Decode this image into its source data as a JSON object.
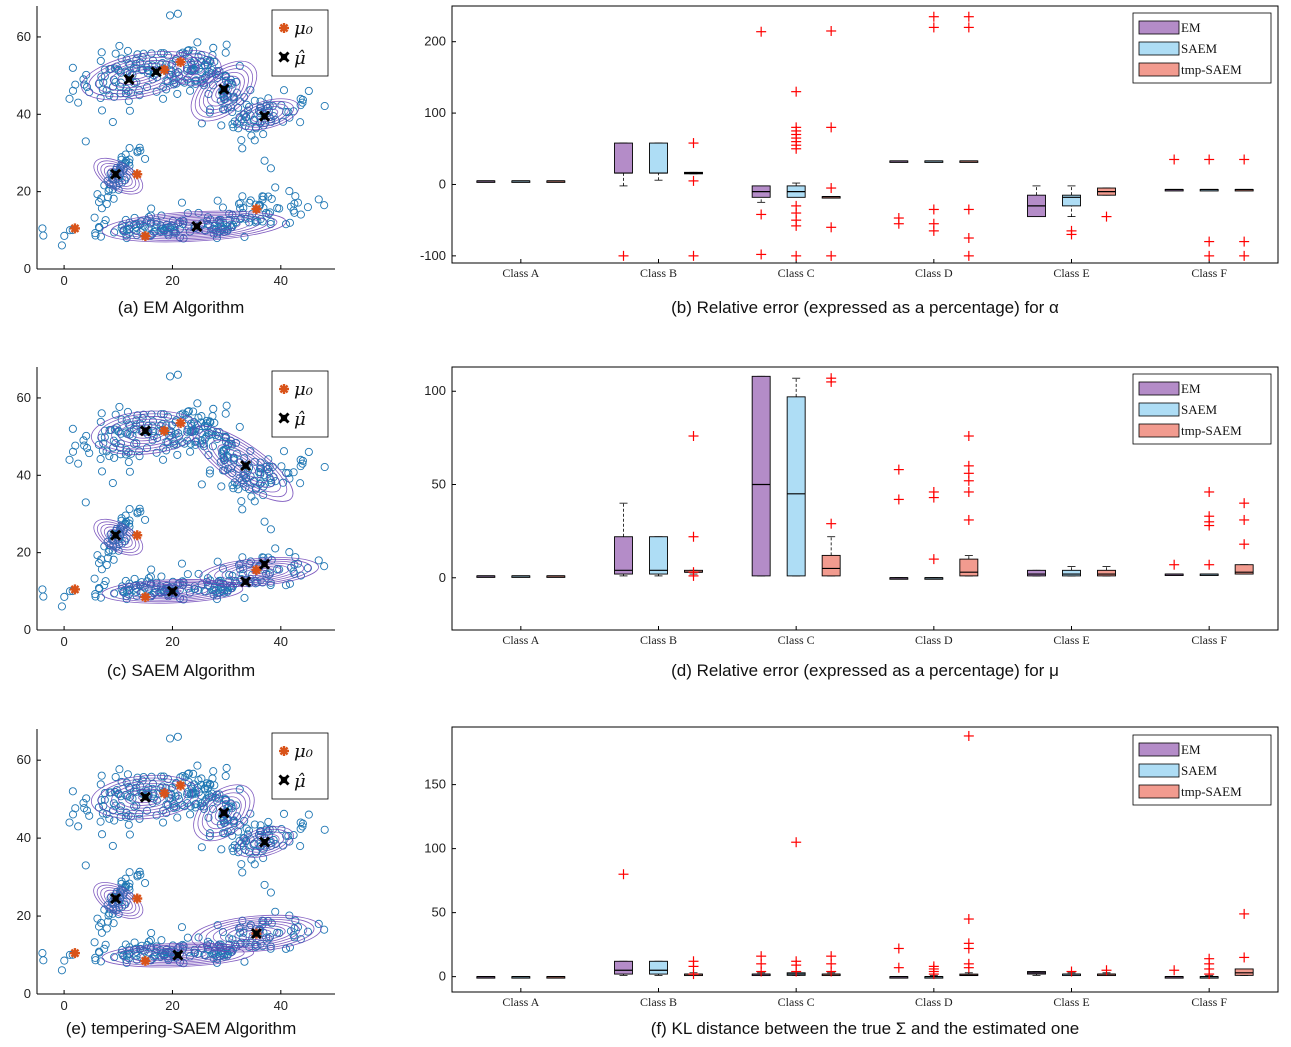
{
  "colors": {
    "point": "#1f77b4",
    "ellipse": "#6a3fb5",
    "mu0": "#d95319",
    "muhat": "#000000",
    "em": "#b48cc8",
    "saem": "#aeddf5",
    "tmp": "#f29b8f",
    "outlier": "#ff0000"
  },
  "legend_scatter": [
    "μ₀",
    "μ̂"
  ],
  "chart_data": [
    {
      "type": "scatter",
      "caption": "(a) EM Algorithm",
      "xlim": [
        -5,
        50
      ],
      "ylim": [
        0,
        68
      ],
      "xticks": [
        0,
        20,
        40
      ],
      "yticks": [
        0,
        20,
        40,
        60
      ],
      "mu0": [
        [
          2,
          10.5
        ],
        [
          13.5,
          24.5
        ],
        [
          15,
          8.5
        ],
        [
          18.5,
          51.5
        ],
        [
          21.5,
          53.5
        ],
        [
          35.5,
          15.5
        ]
      ],
      "muhat": [
        [
          9.5,
          24.5
        ],
        [
          12,
          49
        ],
        [
          17,
          51
        ],
        [
          24.5,
          11
        ],
        [
          29.5,
          46.5
        ],
        [
          37,
          39.5
        ]
      ]
    },
    {
      "type": "box",
      "caption": "(b) Relative error (expressed as a percentage) for α",
      "categories": [
        "Class A",
        "Class B",
        "Class C",
        "Class D",
        "Class E",
        "Class F"
      ],
      "series": [
        "EM",
        "SAEM",
        "tmp-SAEM"
      ],
      "ylim": [
        -110,
        250
      ],
      "yticks": [
        -100,
        0,
        100,
        200
      ],
      "boxes": [
        [
          [
            5,
            5,
            5,
            5,
            5
          ],
          [
            5,
            5,
            5,
            5,
            5
          ],
          [
            5,
            5,
            5,
            5,
            5
          ]
        ],
        [
          [
            -2,
            16,
            16,
            58,
            58
          ],
          [
            6,
            16,
            16,
            58,
            58
          ],
          [
            15,
            16,
            16,
            17,
            17
          ]
        ],
        [
          [
            -25,
            -18,
            -10,
            -2,
            -2
          ],
          [
            -15,
            -18,
            -10,
            -2,
            2
          ],
          [
            -18,
            -18,
            -17,
            -17,
            -17
          ]
        ],
        [
          [
            33,
            33,
            33,
            33,
            33
          ],
          [
            33,
            33,
            33,
            33,
            33
          ],
          [
            33,
            33,
            33,
            33,
            33
          ]
        ],
        [
          [
            -45,
            -45,
            -30,
            -15,
            -2
          ],
          [
            -45,
            -30,
            -18,
            -15,
            -2
          ],
          [
            -15,
            -15,
            -10,
            -5,
            -5
          ]
        ],
        [
          [
            -7,
            -7,
            -7,
            -7,
            -7
          ],
          [
            -7,
            -7,
            -7,
            -7,
            -7
          ],
          [
            -7,
            -7,
            -7,
            -7,
            -7
          ]
        ]
      ],
      "outliers": [
        [
          [],
          [],
          []
        ],
        [
          [
            -100
          ],
          [],
          [
            58,
            5,
            -100
          ]
        ],
        [
          [
            214,
            -42,
            -98
          ],
          [
            130,
            80,
            75,
            70,
            65,
            60,
            55,
            50,
            -30,
            -40,
            -50,
            -58,
            -100
          ],
          [
            215,
            80,
            -5,
            -60,
            -100
          ]
        ],
        [
          [
            -47,
            -55
          ],
          [
            235,
            220,
            -35,
            -55,
            -65
          ],
          [
            235,
            220,
            -35,
            -75,
            -100
          ]
        ],
        [
          [],
          [
            -65,
            -70
          ],
          [
            -45
          ]
        ],
        [
          [
            35
          ],
          [
            35,
            -80,
            -100
          ],
          [
            35,
            -80,
            -100
          ]
        ]
      ]
    },
    {
      "type": "scatter",
      "caption": "(c) SAEM Algorithm",
      "xlim": [
        -5,
        50
      ],
      "ylim": [
        0,
        68
      ],
      "xticks": [
        0,
        20,
        40
      ],
      "yticks": [
        0,
        20,
        40,
        60
      ],
      "mu0": [
        [
          2,
          10.5
        ],
        [
          13.5,
          24.5
        ],
        [
          15,
          8.5
        ],
        [
          18.5,
          51.5
        ],
        [
          21.5,
          53.5
        ],
        [
          35.5,
          15.5
        ]
      ],
      "muhat": [
        [
          9.5,
          24.5
        ],
        [
          15,
          51.5
        ],
        [
          20,
          10
        ],
        [
          33.5,
          42.5
        ],
        [
          33.5,
          12.5
        ],
        [
          37,
          17
        ]
      ]
    },
    {
      "type": "box",
      "caption": "(d) Relative error (expressed as a percentage) for μ",
      "categories": [
        "Class A",
        "Class B",
        "Class C",
        "Class D",
        "Class E",
        "Class F"
      ],
      "series": [
        "EM",
        "SAEM",
        "tmp-SAEM"
      ],
      "ylim": [
        -28,
        113
      ],
      "yticks": [
        0,
        50,
        100
      ],
      "boxes": [
        [
          [
            1,
            1,
            1,
            1,
            1
          ],
          [
            1,
            1,
            1,
            1,
            1
          ],
          [
            1,
            1,
            1,
            1,
            1
          ]
        ],
        [
          [
            1,
            2,
            4,
            22,
            40
          ],
          [
            1,
            2,
            4,
            22,
            22
          ],
          [
            2,
            3,
            3,
            4,
            4
          ]
        ],
        [
          [
            1,
            1,
            50,
            108,
            108
          ],
          [
            1,
            1,
            45,
            97,
            107
          ],
          [
            1,
            1,
            5,
            12,
            22
          ]
        ],
        [
          [
            0,
            0,
            0,
            0,
            0
          ],
          [
            0,
            0,
            0,
            0,
            0
          ],
          [
            1,
            1,
            3,
            10,
            12
          ]
        ],
        [
          [
            1,
            1,
            2,
            4,
            4
          ],
          [
            1,
            1,
            2,
            4,
            6
          ],
          [
            1,
            1,
            2,
            4,
            6
          ]
        ],
        [
          [
            2,
            2,
            2,
            2,
            2
          ],
          [
            2,
            2,
            2,
            2,
            2
          ],
          [
            2,
            2,
            3,
            7,
            7
          ]
        ]
      ],
      "outliers": [
        [
          [],
          [],
          []
        ],
        [
          [],
          [],
          [
            76,
            22,
            3,
            1
          ]
        ],
        [
          [],
          [],
          [
            107,
            105,
            29
          ]
        ],
        [
          [
            58,
            42
          ],
          [
            46,
            43,
            10
          ],
          [
            76,
            60,
            56,
            52,
            46,
            31
          ]
        ],
        [
          [],
          [],
          []
        ],
        [
          [
            7
          ],
          [
            46,
            33,
            30,
            28,
            7
          ],
          [
            40,
            31,
            18
          ]
        ]
      ]
    },
    {
      "type": "scatter",
      "caption": "(e) tempering-SAEM Algorithm",
      "xlim": [
        -5,
        50
      ],
      "ylim": [
        0,
        68
      ],
      "xticks": [
        0,
        20,
        40
      ],
      "yticks": [
        0,
        20,
        40,
        60
      ],
      "mu0": [
        [
          2,
          10.5
        ],
        [
          13.5,
          24.5
        ],
        [
          15,
          8.5
        ],
        [
          18.5,
          51.5
        ],
        [
          21.5,
          53.5
        ],
        [
          35.5,
          15.5
        ]
      ],
      "muhat": [
        [
          9.5,
          24.5
        ],
        [
          15,
          50.5
        ],
        [
          21,
          10
        ],
        [
          29.5,
          46.5
        ],
        [
          35.5,
          15.5
        ],
        [
          37,
          39
        ]
      ]
    },
    {
      "type": "box",
      "caption": "(f) KL distance between the true Σ and the estimated one",
      "categories": [
        "Class A",
        "Class B",
        "Class C",
        "Class D",
        "Class E",
        "Class F"
      ],
      "series": [
        "EM",
        "SAEM",
        "tmp-SAEM"
      ],
      "ylim": [
        -12,
        195
      ],
      "yticks": [
        0,
        50,
        100,
        150
      ],
      "boxes": [
        [
          [
            0,
            0,
            0,
            0,
            0
          ],
          [
            0,
            0,
            0,
            0,
            0
          ],
          [
            0,
            0,
            0,
            0,
            0
          ]
        ],
        [
          [
            1,
            2,
            5,
            12,
            12
          ],
          [
            1,
            2,
            5,
            12,
            12
          ],
          [
            1,
            1,
            2,
            2,
            3
          ]
        ],
        [
          [
            1,
            1,
            2,
            2,
            3
          ],
          [
            1,
            1,
            2,
            3,
            4
          ],
          [
            1,
            1,
            2,
            2,
            3
          ]
        ],
        [
          [
            0,
            0,
            0,
            0,
            0
          ],
          [
            0,
            0,
            0,
            0,
            1
          ],
          [
            1,
            1,
            1,
            2,
            3
          ]
        ],
        [
          [
            1,
            2,
            3,
            4,
            4
          ],
          [
            1,
            1,
            2,
            2,
            3
          ],
          [
            1,
            1,
            2,
            2,
            3
          ]
        ],
        [
          [
            0,
            0,
            0,
            0,
            0
          ],
          [
            0,
            0,
            0,
            0,
            1
          ],
          [
            1,
            1,
            3,
            6,
            6
          ]
        ]
      ],
      "outliers": [
        [
          [],
          [],
          []
        ],
        [
          [
            80
          ],
          [],
          [
            12,
            8,
            2
          ]
        ],
        [
          [
            16,
            10,
            4
          ],
          [
            105,
            12,
            9,
            4
          ],
          [
            16,
            10,
            4
          ]
        ],
        [
          [
            22,
            7
          ],
          [
            8,
            6,
            4,
            2
          ],
          [
            188,
            45,
            26,
            22,
            10,
            7
          ]
        ],
        [
          [],
          [
            4
          ],
          [
            5
          ]
        ],
        [
          [
            5
          ],
          [
            14,
            10,
            6,
            2
          ],
          [
            49,
            15
          ]
        ]
      ]
    }
  ]
}
